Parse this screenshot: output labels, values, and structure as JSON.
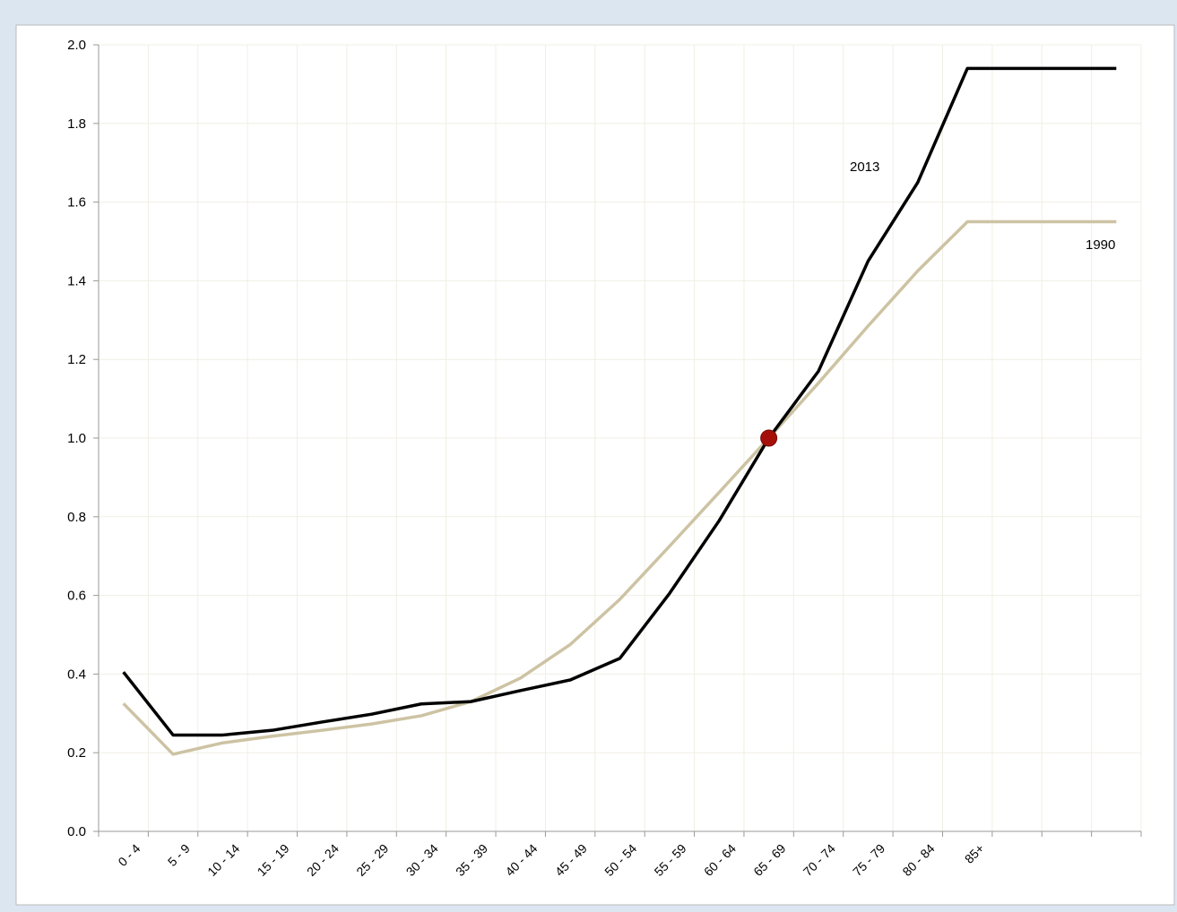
{
  "chart_data": {
    "type": "line",
    "categories": [
      "0 - 4",
      "5 - 9",
      "10 - 14",
      "15 - 19",
      "20 - 24",
      "25 - 29",
      "30 - 34",
      "35 - 39",
      "40 - 44",
      "45 - 49",
      "50 - 54",
      "55 - 59",
      "60 - 64",
      "65 - 69",
      "70 - 74",
      "75 - 79",
      "80 - 84",
      "85+",
      null,
      null,
      null
    ],
    "series": [
      {
        "name": "2013",
        "color": "#000000",
        "values": [
          0.405,
          0.245,
          0.245,
          0.257,
          0.278,
          0.298,
          0.324,
          0.33,
          0.358,
          0.385,
          0.44,
          0.605,
          0.79,
          1.0,
          1.17,
          1.45,
          1.65,
          1.94,
          1.94,
          1.94,
          1.94
        ]
      },
      {
        "name": "1990",
        "color": "#cdc3a3",
        "values": [
          0.325,
          0.196,
          0.225,
          0.242,
          0.257,
          0.273,
          0.294,
          0.33,
          0.39,
          0.475,
          0.59,
          0.725,
          0.862,
          1.0,
          1.14,
          1.285,
          1.425,
          1.55,
          1.55,
          1.55,
          1.55
        ]
      }
    ],
    "highlight": {
      "series": 0,
      "index": 13,
      "color": "#a50f0a"
    },
    "ylim": [
      0,
      2
    ],
    "yticks": [
      {
        "value": 0,
        "label": "0.0"
      },
      {
        "value": 0.2,
        "label": "0.2"
      },
      {
        "value": 0.4,
        "label": "0.4"
      },
      {
        "value": 0.6,
        "label": "0.6"
      },
      {
        "value": 0.8,
        "label": "0.8"
      },
      {
        "value": 1,
        "label": "1.0"
      },
      {
        "value": 1.2,
        "label": "1.2"
      },
      {
        "value": 1.4,
        "label": "1.4"
      },
      {
        "value": 1.6,
        "label": "1.6"
      },
      {
        "value": 1.8,
        "label": "1.8"
      },
      {
        "value": 2,
        "label": "2.0"
      }
    ],
    "grid": true
  }
}
